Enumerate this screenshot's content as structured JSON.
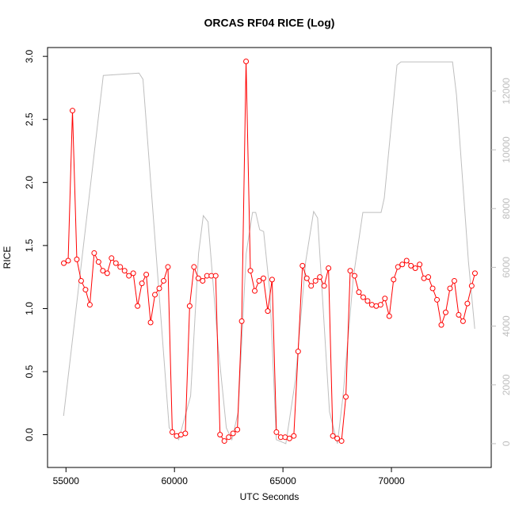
{
  "chart_data": {
    "type": "line",
    "title": "ORCAS RF04 RICE (Log)",
    "x_label": "UTC Seconds",
    "y_label": "RICE",
    "xlim": [
      54150,
      74600
    ],
    "ylim": [
      -0.26,
      3.07
    ],
    "y2lim": [
      -810,
      13480
    ],
    "xticks": [
      55000,
      60000,
      65000,
      70000
    ],
    "yticks": [
      {
        "value": 0,
        "label": "0.0"
      },
      0.5,
      {
        "value": 1,
        "label": "1.0"
      },
      1.5,
      {
        "value": 2,
        "label": "2.0"
      },
      2.5,
      {
        "value": 3,
        "label": "3.0"
      }
    ],
    "y2ticks": [
      0,
      2000,
      4000,
      6000,
      8000,
      10000,
      12000
    ],
    "series": [
      {
        "color": "#bebebe",
        "axis": "y2",
        "marker": "none",
        "x": [
          54890,
          56720,
          58366,
          58549,
          59756,
          60195,
          60744,
          61110,
          61329,
          61549,
          62024,
          62390,
          62646,
          62939,
          63305,
          63598,
          63744,
          63927,
          64110,
          64402,
          64695,
          65134,
          65573,
          66049,
          66415,
          66598,
          67146,
          67512,
          67768,
          68244,
          68683,
          69524,
          69671,
          70256,
          70439,
          72817,
          73000,
          73549,
          73841
        ],
        "values": [
          943,
          12530,
          12610,
          12400,
          540,
          135,
          1620,
          6470,
          7760,
          7550,
          3230,
          540,
          135,
          1080,
          6470,
          7870,
          7870,
          7280,
          7220,
          5120,
          135,
          0,
          2160,
          6200,
          7900,
          7680,
          1080,
          0,
          1620,
          5660,
          7870,
          7870,
          8360,
          12880,
          12990,
          12990,
          11860,
          6200,
          3910
        ]
      },
      {
        "color": "#ff0000",
        "axis": "y",
        "marker": "circle",
        "x": [
          54900,
          55100,
          55300,
          55500,
          55700,
          55900,
          56100,
          56300,
          56500,
          56700,
          56900,
          57100,
          57300,
          57500,
          57700,
          57900,
          58100,
          58300,
          58500,
          58700,
          58900,
          59100,
          59300,
          59500,
          59700,
          59900,
          60100,
          60300,
          60500,
          60700,
          60900,
          61100,
          61300,
          61500,
          61700,
          61900,
          62100,
          62300,
          62500,
          62700,
          62900,
          63100,
          63300,
          63500,
          63700,
          63900,
          64100,
          64300,
          64500,
          64700,
          64900,
          65100,
          65300,
          65500,
          65700,
          65900,
          66100,
          66300,
          66500,
          66700,
          66900,
          67100,
          67300,
          67500,
          67700,
          67900,
          68100,
          68300,
          68500,
          68700,
          68900,
          69100,
          69300,
          69500,
          69700,
          69900,
          70100,
          70300,
          70500,
          70700,
          70900,
          71100,
          71300,
          71500,
          71700,
          71900,
          72100,
          72300,
          72500,
          72700,
          72900,
          73100,
          73300,
          73500,
          73700,
          73850
        ],
        "values": [
          1.36,
          1.38,
          2.57,
          1.39,
          1.22,
          1.15,
          1.03,
          1.44,
          1.37,
          1.3,
          1.28,
          1.4,
          1.36,
          1.33,
          1.3,
          1.26,
          1.28,
          1.02,
          1.2,
          1.27,
          0.89,
          1.11,
          1.16,
          1.22,
          1.33,
          0.02,
          -0.01,
          0,
          0.01,
          1.02,
          1.33,
          1.24,
          1.22,
          1.26,
          1.26,
          1.26,
          0,
          -0.05,
          -0.02,
          0.01,
          0.04,
          0.9,
          2.96,
          1.3,
          1.14,
          1.22,
          1.24,
          0.98,
          1.23,
          0.02,
          -0.02,
          -0.02,
          -0.03,
          -0.01,
          0.66,
          1.34,
          1.24,
          1.18,
          1.22,
          1.25,
          1.18,
          1.32,
          -0.01,
          -0.03,
          -0.05,
          0.3,
          1.3,
          1.26,
          1.13,
          1.09,
          1.06,
          1.03,
          1.02,
          1.03,
          1.08,
          0.94,
          1.23,
          1.33,
          1.35,
          1.38,
          1.34,
          1.32,
          1.35,
          1.24,
          1.25,
          1.16,
          1.07,
          0.87,
          0.97,
          1.16,
          1.22,
          0.95,
          0.9,
          1.04,
          1.18,
          1.28
        ]
      }
    ]
  }
}
